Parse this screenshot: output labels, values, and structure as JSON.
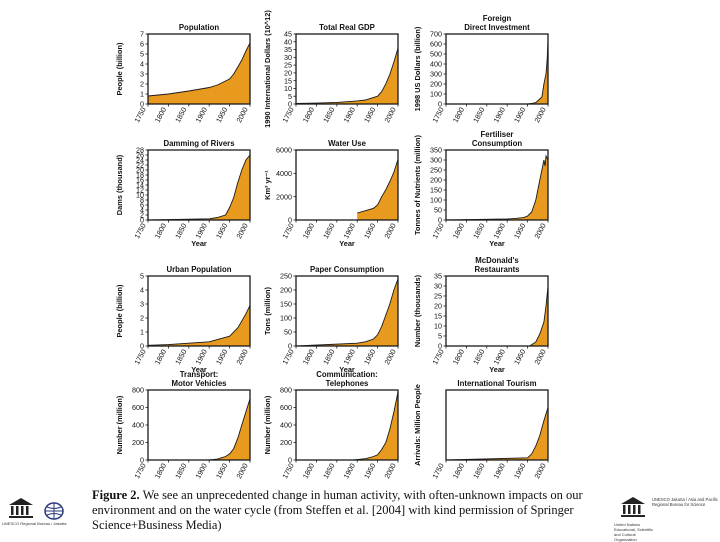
{
  "chart_data": [
    {
      "type": "area",
      "title": [
        "Population"
      ],
      "ylabel": "People (billion)",
      "xlabel": "",
      "ylim": [
        0,
        7
      ],
      "yticks": [
        0,
        1,
        2,
        3,
        4,
        5,
        6,
        7
      ],
      "xticks": [
        1750,
        1800,
        1850,
        1900,
        1950,
        2000
      ],
      "x": [
        1750,
        1800,
        1850,
        1900,
        1920,
        1950,
        1960,
        1970,
        1980,
        1990,
        2000
      ],
      "values": [
        0.8,
        1.0,
        1.3,
        1.65,
        1.9,
        2.5,
        3.0,
        3.7,
        4.4,
        5.3,
        6.1
      ]
    },
    {
      "type": "area",
      "title": [
        "Total Real GDP"
      ],
      "ylabel": "1990 International Dollars (10^12)",
      "xlabel": "",
      "ylim": [
        0,
        45
      ],
      "yticks": [
        0,
        5,
        10,
        15,
        20,
        25,
        30,
        35,
        40,
        45
      ],
      "xticks": [
        1750,
        1800,
        1850,
        1900,
        1950,
        2000
      ],
      "x": [
        1750,
        1800,
        1850,
        1900,
        1920,
        1950,
        1960,
        1970,
        1980,
        1990,
        2000
      ],
      "values": [
        0.3,
        0.6,
        1,
        2,
        2.6,
        5,
        8,
        13,
        19,
        27,
        36
      ]
    },
    {
      "type": "area",
      "title": [
        "Foreign",
        "Direct Investment"
      ],
      "ylabel": "1998 US Dollars (billion)",
      "xlabel": "",
      "ylim": [
        0,
        700
      ],
      "yticks": [
        0,
        100,
        200,
        300,
        400,
        500,
        600,
        700
      ],
      "xticks": [
        1750,
        1800,
        1850,
        1900,
        1950,
        2000
      ],
      "x": [
        1750,
        1950,
        1960,
        1970,
        1980,
        1985,
        1990,
        1995,
        1998,
        2000
      ],
      "values": [
        0,
        0,
        5,
        15,
        50,
        70,
        200,
        300,
        450,
        650
      ]
    },
    {
      "type": "area",
      "title": [
        "Damming of Rivers"
      ],
      "ylabel": "Dams (thousand)",
      "xlabel": "Year",
      "ylim": [
        0,
        28
      ],
      "yticks": [
        0,
        2,
        4,
        6,
        8,
        10,
        12,
        14,
        16,
        18,
        20,
        22,
        24,
        26,
        28
      ],
      "xticks": [
        1750,
        1800,
        1850,
        1900,
        1950,
        2000
      ],
      "x": [
        1750,
        1900,
        1920,
        1940,
        1950,
        1960,
        1970,
        1980,
        1990,
        2000
      ],
      "values": [
        0,
        0.5,
        1,
        2,
        5,
        9,
        15,
        20,
        24,
        26
      ]
    },
    {
      "type": "area",
      "title": [
        "Water Use"
      ],
      "ylabel": "Km³ yr⁻¹",
      "xlabel": "Year",
      "ylim": [
        0,
        6000
      ],
      "yticks": [
        0,
        2000,
        4000,
        6000
      ],
      "xticks": [
        1750,
        1800,
        1850,
        1900,
        1950,
        2000
      ],
      "x": [
        1900,
        1920,
        1940,
        1950,
        1960,
        1970,
        1980,
        1990,
        2000
      ],
      "values": [
        600,
        800,
        1000,
        1300,
        2000,
        2600,
        3300,
        4100,
        5200
      ]
    },
    {
      "type": "area",
      "title": [
        "Fertiliser",
        "Consumption"
      ],
      "ylabel": "Tonnes of Nutrients (million)",
      "xlabel": "Year",
      "ylim": [
        0,
        350
      ],
      "yticks": [
        0,
        50,
        100,
        150,
        200,
        250,
        300,
        350
      ],
      "xticks": [
        1750,
        1800,
        1850,
        1900,
        1950,
        2000
      ],
      "x": [
        1750,
        1900,
        1920,
        1940,
        1950,
        1960,
        1970,
        1980,
        1985,
        1990,
        1993,
        1995,
        2000
      ],
      "values": [
        0,
        5,
        8,
        12,
        20,
        40,
        100,
        200,
        250,
        300,
        270,
        320,
        300
      ]
    },
    {
      "type": "area",
      "title": [
        "Urban Population"
      ],
      "ylabel": "People (billion)",
      "xlabel": "Year",
      "ylim": [
        0,
        5
      ],
      "yticks": [
        0,
        1,
        2,
        3,
        4,
        5
      ],
      "xticks": [
        1750,
        1800,
        1850,
        1900,
        1950,
        2000
      ],
      "x": [
        1750,
        1800,
        1850,
        1900,
        1950,
        1970,
        1990,
        2000
      ],
      "values": [
        0.05,
        0.1,
        0.2,
        0.3,
        0.7,
        1.3,
        2.3,
        2.9
      ]
    },
    {
      "type": "area",
      "title": [
        "Paper Consumption"
      ],
      "ylabel": "Tons (million)",
      "xlabel": "Year",
      "ylim": [
        0,
        250
      ],
      "yticks": [
        0,
        50,
        100,
        150,
        200,
        250
      ],
      "xticks": [
        1750,
        1800,
        1850,
        1900,
        1950,
        2000
      ],
      "x": [
        1750,
        1900,
        1920,
        1940,
        1950,
        1960,
        1970,
        1980,
        1990,
        2000
      ],
      "values": [
        0,
        10,
        15,
        25,
        40,
        70,
        110,
        150,
        200,
        240
      ]
    },
    {
      "type": "area",
      "title": [
        "McDonald's",
        "Restaurants"
      ],
      "ylabel": "Number (thousands)",
      "xlabel": "Year",
      "ylim": [
        0,
        35
      ],
      "yticks": [
        0,
        5,
        10,
        15,
        20,
        25,
        30,
        35
      ],
      "xticks": [
        1750,
        1800,
        1850,
        1900,
        1950,
        2000
      ],
      "x": [
        1750,
        1955,
        1970,
        1980,
        1990,
        1995,
        2000
      ],
      "values": [
        0,
        0,
        2,
        6,
        12,
        20,
        30
      ]
    },
    {
      "type": "area",
      "title": [
        "Transport:",
        "Motor Vehicles"
      ],
      "ylabel": "Number (million)",
      "xlabel": "Year",
      "ylim": [
        0,
        800
      ],
      "yticks": [
        0,
        200,
        400,
        600,
        800
      ],
      "xticks": [
        1750,
        1800,
        1850,
        1900,
        1950,
        2000
      ],
      "x": [
        1750,
        1900,
        1920,
        1940,
        1950,
        1960,
        1970,
        1980,
        1990,
        2000
      ],
      "values": [
        0,
        0,
        10,
        40,
        70,
        130,
        250,
        400,
        550,
        700
      ]
    },
    {
      "type": "area",
      "title": [
        "Communication:",
        "Telephones"
      ],
      "ylabel": "Number (million)",
      "xlabel": "Year",
      "ylim": [
        0,
        800
      ],
      "yticks": [
        0,
        200,
        400,
        600,
        800
      ],
      "xticks": [
        1750,
        1800,
        1850,
        1900,
        1950,
        2000
      ],
      "x": [
        1750,
        1890,
        1920,
        1940,
        1950,
        1960,
        1970,
        1980,
        1990,
        2000
      ],
      "values": [
        0,
        0,
        15,
        40,
        60,
        120,
        200,
        350,
        550,
        780
      ]
    },
    {
      "type": "area",
      "title": [
        "International Tourism"
      ],
      "ylabel": "Arrivals: Million People",
      "xlabel": "Year",
      "ylim": [
        0,
        800
      ],
      "yticks": [],
      "xticks": [
        1750,
        1800,
        1850,
        1900,
        1950,
        2000
      ],
      "x": [
        1750,
        1950,
        1960,
        1970,
        1980,
        1990,
        2000
      ],
      "values": [
        0,
        25,
        70,
        160,
        280,
        450,
        600
      ]
    }
  ],
  "caption": {
    "label": "Figure 2.",
    "lines": [
      "We see an unprecedented change in human activity, with often-unknown impacts on our",
      "environment and on the water cycle (from Steffen et al. [2004] with kind permission of Springer",
      "Science+Business Media)"
    ]
  },
  "logos": {
    "left_text": "UNESCO Regional Bureau / Jakarta",
    "right_title": "UNESCO Jakarta / Asia and Pacific Regional Bureau for Science",
    "right_bottom": "United Nations Educational, Scientific and Cultural Organization"
  },
  "colors": {
    "fill": "#e89a1e",
    "stroke": "#1a1a1a",
    "frame": "#1a1a1a"
  }
}
